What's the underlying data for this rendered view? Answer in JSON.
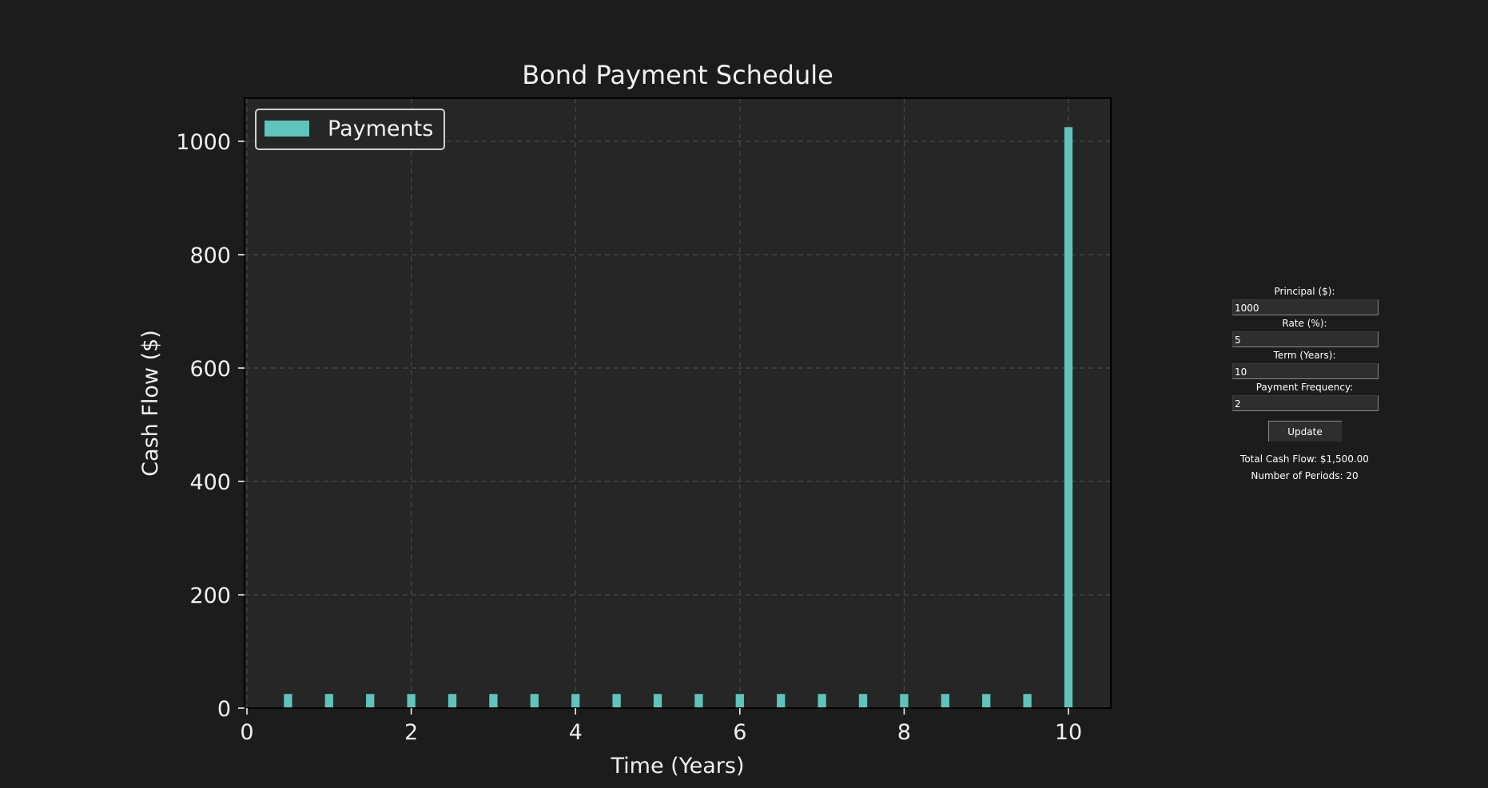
{
  "chart_data": {
    "type": "bar",
    "title": "Bond Payment Schedule",
    "xlabel": "Time (Years)",
    "ylabel": "Cash Flow ($)",
    "xlim": [
      0,
      10.5
    ],
    "ylim": [
      0,
      1075
    ],
    "xticks": [
      0,
      2,
      4,
      6,
      8,
      10
    ],
    "yticks": [
      0,
      200,
      400,
      600,
      800,
      1000
    ],
    "grid": true,
    "legend": {
      "placement": "top-left",
      "entries": [
        "Payments"
      ]
    },
    "series": [
      {
        "name": "Payments",
        "color": "#5ec4bc",
        "x": [
          0.5,
          1,
          1.5,
          2,
          2.5,
          3,
          3.5,
          4,
          4.5,
          5,
          5.5,
          6,
          6.5,
          7,
          7.5,
          8,
          8.5,
          9,
          9.5,
          10
        ],
        "values": [
          25,
          25,
          25,
          25,
          25,
          25,
          25,
          25,
          25,
          25,
          25,
          25,
          25,
          25,
          25,
          25,
          25,
          25,
          25,
          1025
        ]
      }
    ]
  },
  "controls": {
    "principal": {
      "label": "Principal ($):",
      "value": "1000"
    },
    "rate": {
      "label": "Rate (%):",
      "value": "5"
    },
    "term": {
      "label": "Term (Years):",
      "value": "10"
    },
    "frequency": {
      "label": "Payment Frequency:",
      "value": "2"
    },
    "update_label": "Update",
    "total_cash_flow": "Total Cash Flow: $1,500.00",
    "num_periods": "Number of Periods: 20"
  },
  "colors": {
    "background": "#1c1c1c",
    "plot_background": "#262626",
    "bar": "#5ec4bc"
  }
}
